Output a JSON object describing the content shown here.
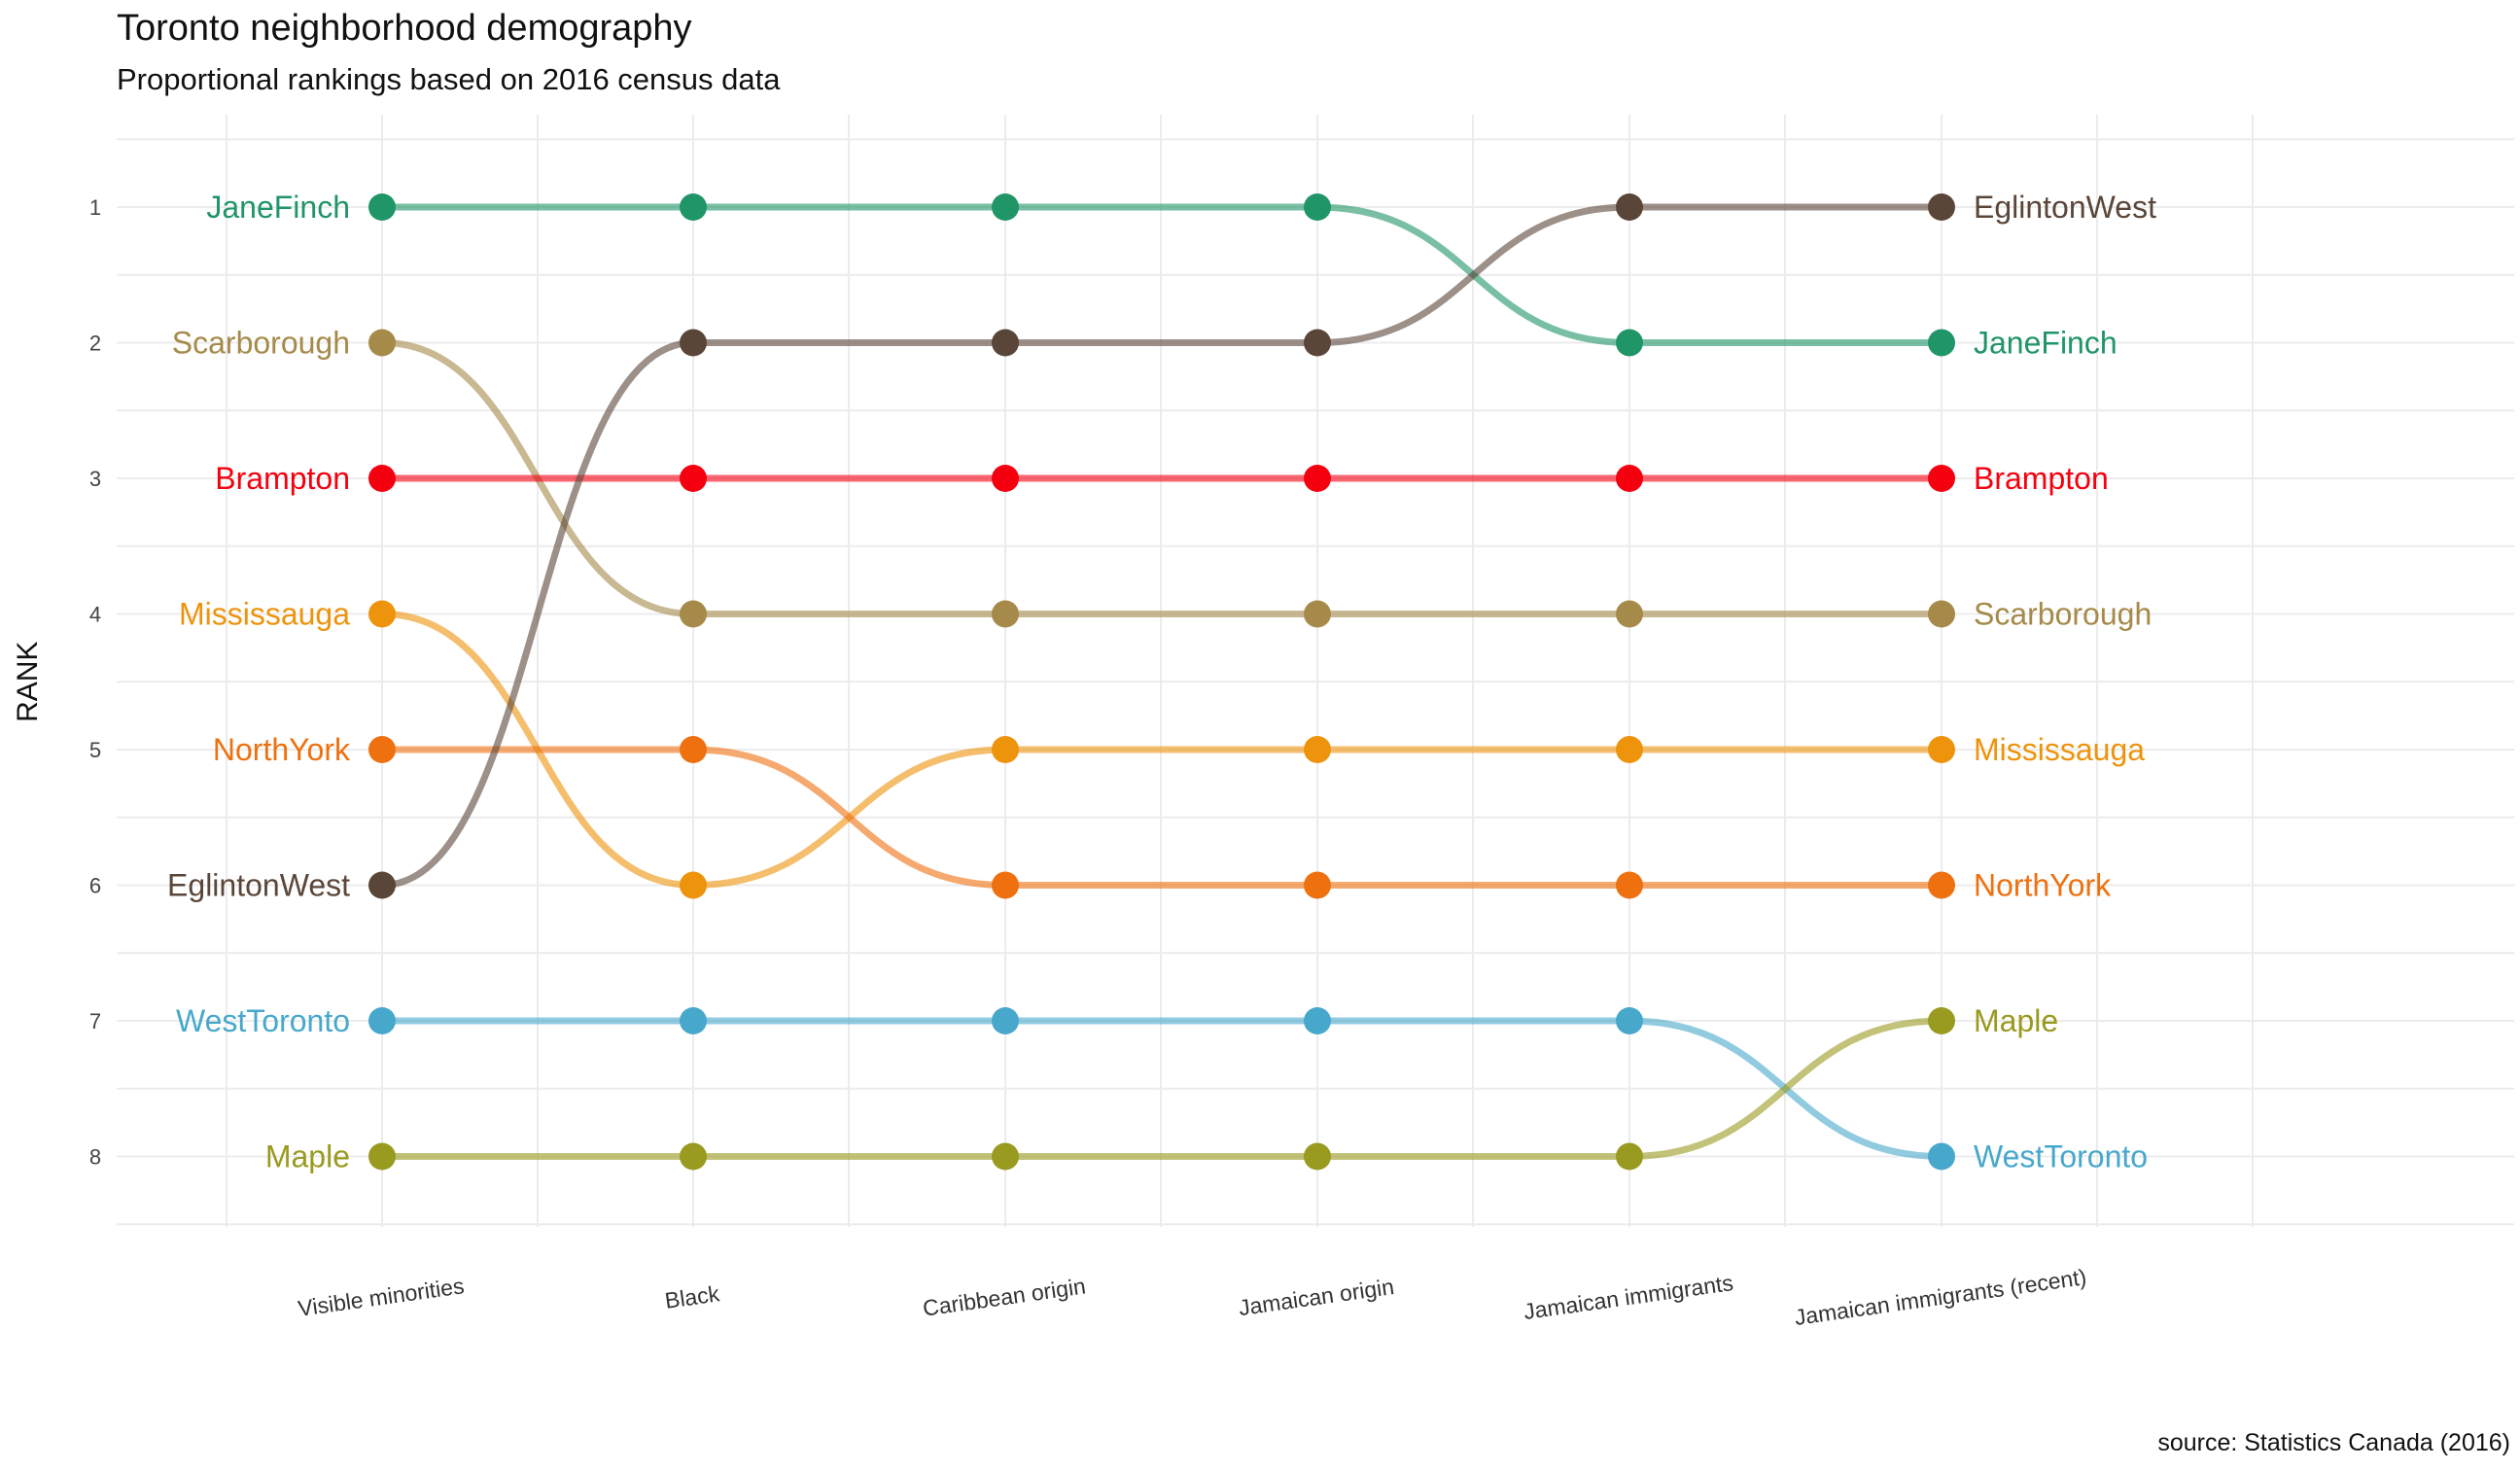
{
  "title": "Toronto neighborhood demography",
  "subtitle": "Proportional rankings based on 2016 census data",
  "caption": "source: Statistics Canada (2016)",
  "chart_data": {
    "type": "bump",
    "ylabel": "RANK",
    "y_reversed": true,
    "ylim": [
      1,
      8
    ],
    "yticks": [
      1,
      2,
      3,
      4,
      5,
      6,
      7,
      8
    ],
    "grid": true,
    "categories": [
      "Visible minorities",
      "Black",
      "Caribbean origin",
      "Jamaican origin",
      "Jamaican immigrants",
      "Jamaican immigrants (recent)"
    ],
    "series": [
      {
        "name": "JaneFinch",
        "color": "#1f9568",
        "ranks": [
          1,
          1,
          1,
          1,
          2,
          2
        ]
      },
      {
        "name": "Scarborough",
        "color": "#a58a4a",
        "ranks": [
          2,
          4,
          4,
          4,
          4,
          4
        ]
      },
      {
        "name": "Brampton",
        "color": "#f5000f",
        "ranks": [
          3,
          3,
          3,
          3,
          3,
          3
        ]
      },
      {
        "name": "Mississauga",
        "color": "#ee930c",
        "ranks": [
          4,
          6,
          5,
          5,
          5,
          5
        ]
      },
      {
        "name": "NorthYork",
        "color": "#ef700f",
        "ranks": [
          5,
          5,
          6,
          6,
          6,
          6
        ]
      },
      {
        "name": "EglintonWest",
        "color": "#5a4638",
        "ranks": [
          6,
          2,
          2,
          2,
          1,
          1
        ]
      },
      {
        "name": "WestToronto",
        "color": "#47a8cc",
        "ranks": [
          7,
          7,
          7,
          7,
          7,
          8
        ]
      },
      {
        "name": "Maple",
        "color": "#999a20",
        "ranks": [
          8,
          8,
          8,
          8,
          8,
          7
        ]
      }
    ]
  }
}
